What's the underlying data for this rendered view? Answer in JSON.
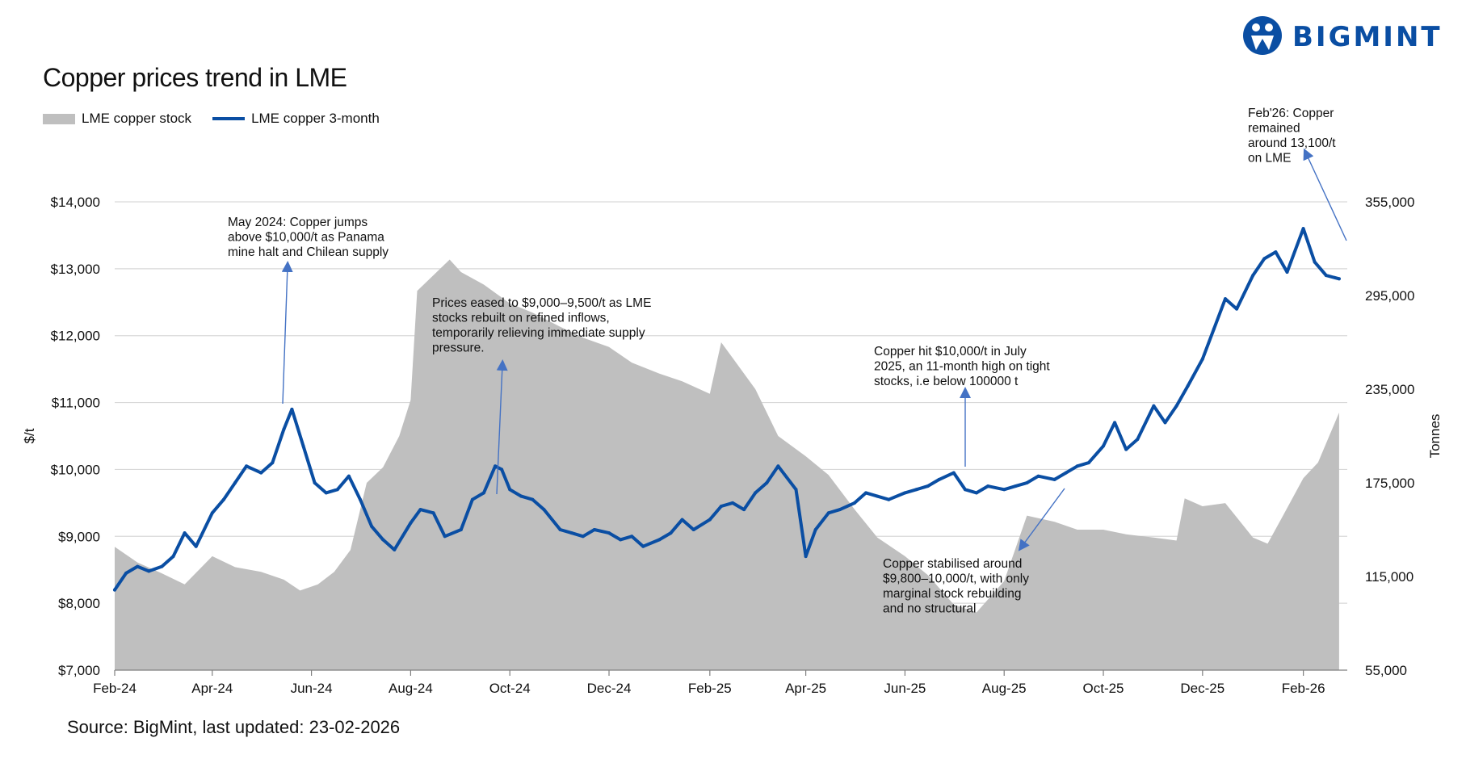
{
  "brand": {
    "name": "BIGMINT",
    "color": "#0a4ea3"
  },
  "source": "Source: BigMint, last updated: 23-02-2026",
  "chart_data": {
    "type": "line",
    "title": "Copper prices trend in LME",
    "legend_placement": "top-left",
    "grid": true,
    "ylabel": "$/t",
    "y2label": "Tonnes",
    "ylim": [
      7000,
      14000
    ],
    "y2lim": [
      55000,
      355000
    ],
    "yticks": [
      "$7,000",
      "$8,000",
      "$9,000",
      "$10,000",
      "$11,000",
      "$12,000",
      "$13,000",
      "$14,000"
    ],
    "y2ticks": [
      "55,000",
      "115,000",
      "175,000",
      "235,000",
      "295,000",
      "355,000"
    ],
    "xticks": [
      "Feb-24",
      "Apr-24",
      "Jun-24",
      "Aug-24",
      "Oct-24",
      "Dec-24",
      "Feb-25",
      "Apr-25",
      "Jun-25",
      "Aug-25",
      "Oct-25",
      "Dec-25",
      "Feb-26"
    ],
    "colors": {
      "price": "#0a4ea3",
      "stock": "#bfbfbf",
      "annotation_arrow": "#4472c4"
    },
    "series": [
      {
        "name": "LME copper 3-month",
        "kind": "line",
        "axis": "left",
        "x": [
          "2024-02-01",
          "2024-02-08",
          "2024-02-15",
          "2024-02-22",
          "2024-03-01",
          "2024-03-08",
          "2024-03-15",
          "2024-03-22",
          "2024-04-01",
          "2024-04-08",
          "2024-04-15",
          "2024-04-22",
          "2024-05-01",
          "2024-05-08",
          "2024-05-15",
          "2024-05-20",
          "2024-05-27",
          "2024-06-03",
          "2024-06-10",
          "2024-06-17",
          "2024-06-24",
          "2024-07-01",
          "2024-07-08",
          "2024-07-15",
          "2024-07-22",
          "2024-08-01",
          "2024-08-07",
          "2024-08-15",
          "2024-08-22",
          "2024-09-01",
          "2024-09-08",
          "2024-09-15",
          "2024-09-22",
          "2024-09-26",
          "2024-10-01",
          "2024-10-08",
          "2024-10-15",
          "2024-10-22",
          "2024-11-01",
          "2024-11-08",
          "2024-11-15",
          "2024-11-22",
          "2024-12-01",
          "2024-12-08",
          "2024-12-15",
          "2024-12-22",
          "2025-01-01",
          "2025-01-08",
          "2025-01-15",
          "2025-01-22",
          "2025-02-01",
          "2025-02-08",
          "2025-02-15",
          "2025-02-22",
          "2025-03-01",
          "2025-03-08",
          "2025-03-15",
          "2025-03-26",
          "2025-04-01",
          "2025-04-07",
          "2025-04-15",
          "2025-04-22",
          "2025-05-01",
          "2025-05-08",
          "2025-05-15",
          "2025-05-22",
          "2025-06-01",
          "2025-06-08",
          "2025-06-15",
          "2025-06-22",
          "2025-07-01",
          "2025-07-08",
          "2025-07-15",
          "2025-07-22",
          "2025-08-01",
          "2025-08-08",
          "2025-08-15",
          "2025-08-22",
          "2025-09-01",
          "2025-09-08",
          "2025-09-15",
          "2025-09-22",
          "2025-10-01",
          "2025-10-08",
          "2025-10-15",
          "2025-10-22",
          "2025-11-01",
          "2025-11-08",
          "2025-11-15",
          "2025-11-22",
          "2025-12-01",
          "2025-12-08",
          "2025-12-15",
          "2025-12-22",
          "2026-01-01",
          "2026-01-08",
          "2026-01-15",
          "2026-01-22",
          "2026-02-01",
          "2026-02-08",
          "2026-02-15",
          "2026-02-23"
        ],
        "values": [
          8200,
          8450,
          8550,
          8480,
          8550,
          8700,
          9050,
          8850,
          9350,
          9550,
          9800,
          10050,
          9950,
          10100,
          10600,
          10900,
          10350,
          9800,
          9650,
          9700,
          9900,
          9550,
          9150,
          8950,
          8800,
          9200,
          9400,
          9350,
          9000,
          9100,
          9550,
          9650,
          10050,
          10000,
          9700,
          9600,
          9550,
          9400,
          9100,
          9050,
          9000,
          9100,
          9050,
          8950,
          9000,
          8850,
          8950,
          9050,
          9250,
          9100,
          9250,
          9450,
          9500,
          9400,
          9650,
          9800,
          10050,
          9700,
          8700,
          9100,
          9350,
          9400,
          9500,
          9650,
          9600,
          9550,
          9650,
          9700,
          9750,
          9850,
          9950,
          9700,
          9650,
          9750,
          9700,
          9750,
          9800,
          9900,
          9850,
          9950,
          10050,
          10100,
          10350,
          10700,
          10300,
          10450,
          10950,
          10700,
          10950,
          11250,
          11650,
          12100,
          12550,
          12400,
          12900,
          13150,
          13250,
          12950,
          13600,
          13100,
          12900,
          12850
        ]
      },
      {
        "name": "LME copper stock",
        "kind": "area",
        "axis": "right",
        "x": [
          "2024-02-01",
          "2024-02-15",
          "2024-03-01",
          "2024-03-15",
          "2024-04-01",
          "2024-04-15",
          "2024-05-01",
          "2024-05-15",
          "2024-05-25",
          "2024-06-05",
          "2024-06-15",
          "2024-06-25",
          "2024-07-05",
          "2024-07-15",
          "2024-07-25",
          "2024-08-01",
          "2024-08-05",
          "2024-08-15",
          "2024-08-25",
          "2024-09-01",
          "2024-09-15",
          "2024-10-01",
          "2024-10-15",
          "2024-11-01",
          "2024-11-15",
          "2024-12-01",
          "2024-12-15",
          "2025-01-01",
          "2025-01-15",
          "2025-02-01",
          "2025-02-08",
          "2025-02-15",
          "2025-03-01",
          "2025-03-15",
          "2025-04-01",
          "2025-04-15",
          "2025-05-01",
          "2025-05-15",
          "2025-06-01",
          "2025-06-15",
          "2025-07-01",
          "2025-07-15",
          "2025-08-01",
          "2025-08-15",
          "2025-09-01",
          "2025-09-15",
          "2025-10-01",
          "2025-10-15",
          "2025-11-01",
          "2025-11-15",
          "2025-11-20",
          "2025-12-01",
          "2025-12-15",
          "2026-01-01",
          "2026-01-10",
          "2026-01-20",
          "2026-02-01",
          "2026-02-10",
          "2026-02-23"
        ],
        "values": [
          134000,
          124000,
          117000,
          110000,
          128000,
          121000,
          118000,
          113000,
          106000,
          110000,
          118000,
          132000,
          175000,
          185000,
          205000,
          228000,
          298000,
          308000,
          318000,
          310000,
          302000,
          290000,
          284000,
          275000,
          268000,
          262000,
          252000,
          245000,
          240000,
          232000,
          265000,
          255000,
          235000,
          205000,
          192000,
          180000,
          158000,
          140000,
          128000,
          116000,
          97000,
          92000,
          112000,
          154000,
          150000,
          145000,
          145000,
          142000,
          140000,
          138000,
          165000,
          160000,
          162000,
          140000,
          136000,
          155000,
          178000,
          188000,
          220000
        ]
      }
    ],
    "annotations": [
      {
        "text_lines": [
          "May 2024: Copper jumps",
          "above $10,000/t as Panama",
          "mine halt and Chilean supply"
        ],
        "points_to": "2024-05-20"
      },
      {
        "text_lines": [
          "Prices eased to $9,000–9,500/t as LME",
          "stocks rebuilt on refined inflows,",
          "temporarily relieving immediate supply",
          "pressure."
        ],
        "points_to": "2024-09-26"
      },
      {
        "text_lines": [
          "Copper hit $10,000/t in July",
          "2025, an 11-month high on tight",
          "stocks, i.e below 100000 t"
        ],
        "points_to": "2025-07-01"
      },
      {
        "text_lines": [
          "Copper stabilised around",
          "$9,800–10,000/t, with only",
          "marginal stock rebuilding",
          "and no structural"
        ],
        "points_to": "2025-08-01"
      },
      {
        "text_lines": [
          "Feb'26: Copper",
          "remained",
          "around 13,100/t",
          "on LME"
        ],
        "points_to": "2026-02-20"
      }
    ]
  }
}
